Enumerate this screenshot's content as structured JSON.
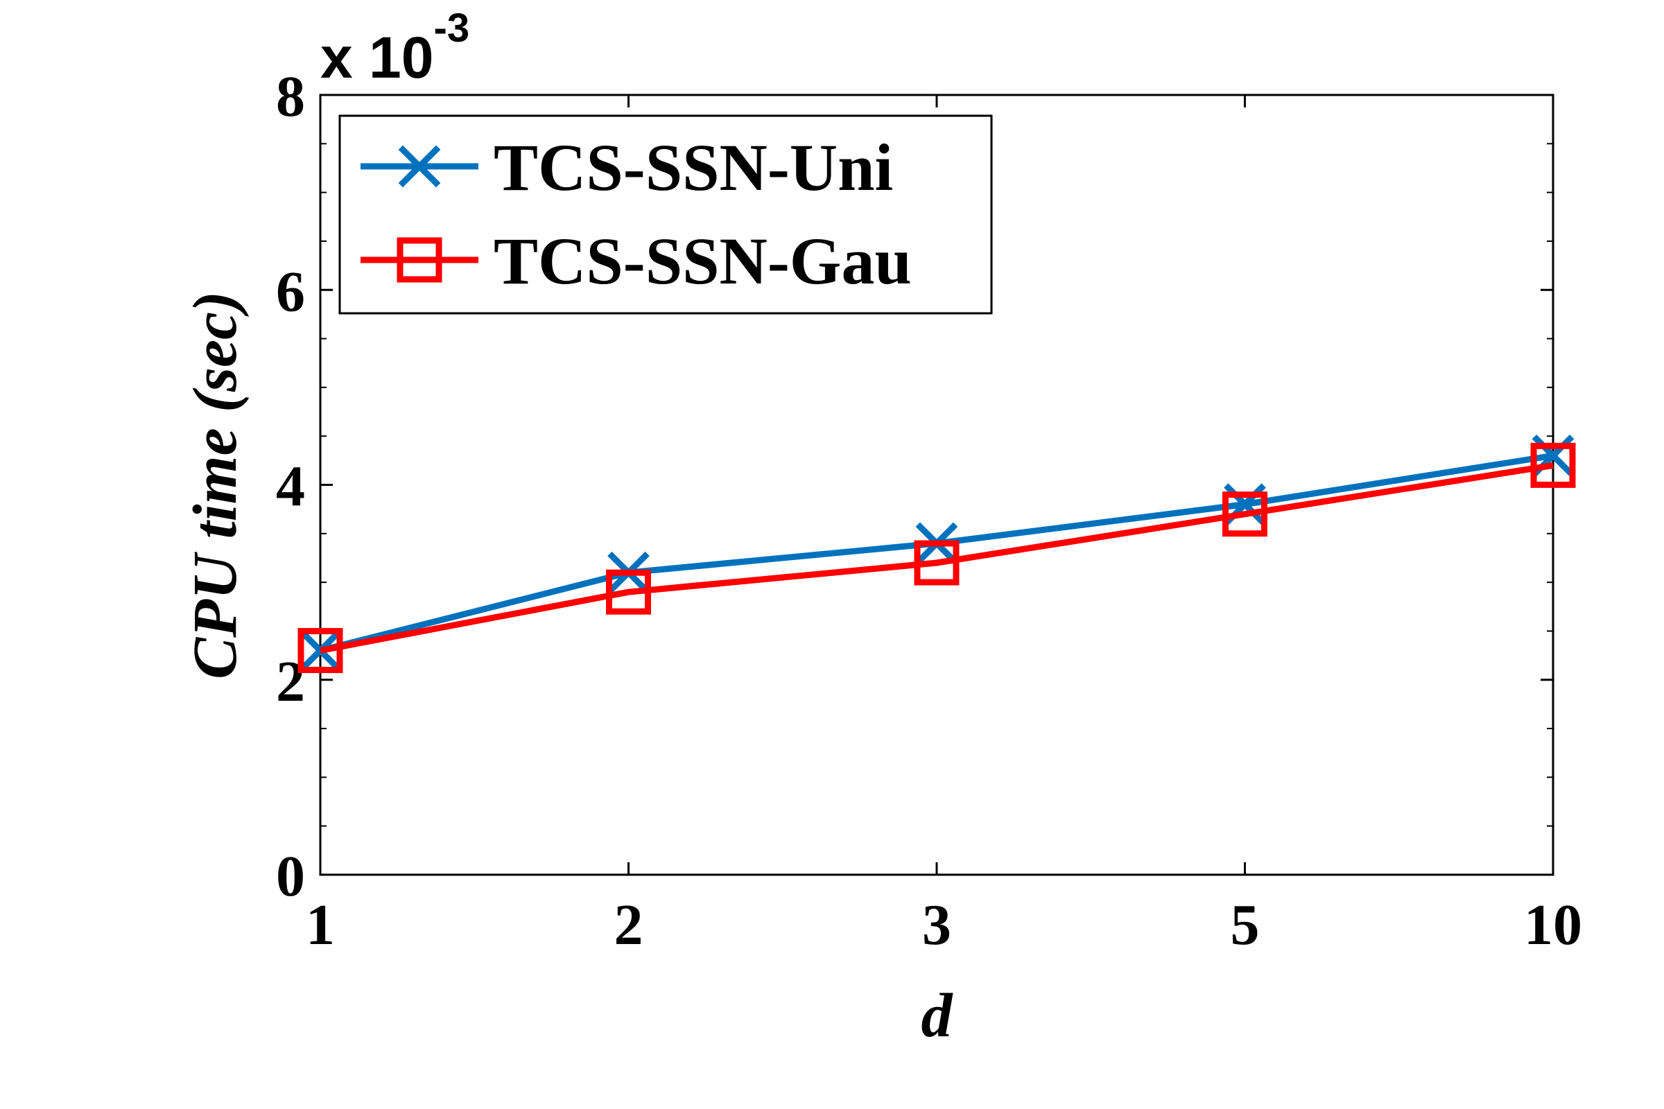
{
  "chart_data": {
    "type": "line",
    "title": "",
    "xlabel": "d",
    "ylabel": "CPU time (sec)",
    "y_multiplier": {
      "base": "x 10",
      "exponent": "-3"
    },
    "categories": [
      "1",
      "2",
      "3",
      "5",
      "10"
    ],
    "ylim": [
      0,
      8
    ],
    "yticks": [
      "0",
      "2",
      "4",
      "6",
      "8"
    ],
    "grid": false,
    "legend_position": "top-left",
    "series": [
      {
        "name": "TCS-SSN-Uni",
        "values": [
          2.3,
          3.1,
          3.4,
          3.8,
          4.3
        ],
        "color": "#0072BD",
        "marker": "x"
      },
      {
        "name": "TCS-SSN-Gau",
        "values": [
          2.3,
          2.9,
          3.2,
          3.7,
          4.2
        ],
        "color": "#FF0000",
        "marker": "square"
      }
    ]
  }
}
